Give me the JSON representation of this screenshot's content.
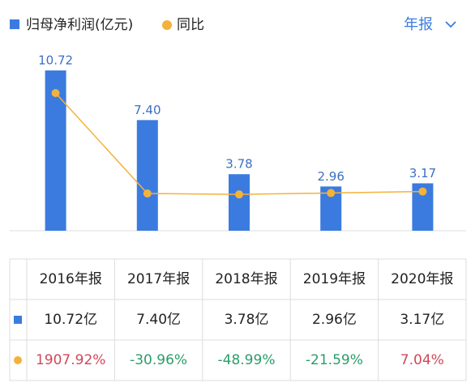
{
  "chart_data": {
    "type": "bar",
    "legend": [
      "归母净利润(亿元)",
      "同比"
    ],
    "period": "年报",
    "categories": [
      "2016年报",
      "2017年报",
      "2018年报",
      "2019年报",
      "2020年报"
    ],
    "series": [
      {
        "name": "归母净利润(亿元)",
        "type": "bar",
        "color": "#3b7be0",
        "values": [
          10.72,
          7.4,
          3.78,
          2.96,
          3.17
        ],
        "value_labels": [
          "10.72",
          "7.40",
          "3.78",
          "2.96",
          "3.17"
        ]
      },
      {
        "name": "同比",
        "type": "line",
        "axis": "y2",
        "color": "#f3b23c",
        "values": [
          1907.92,
          -30.96,
          -48.99,
          -21.59,
          7.04
        ]
      }
    ],
    "ylim": [
      0,
      12.4
    ],
    "y2lim": [
      -750,
      2830
    ],
    "positive_color": "#d0485a",
    "negative_color": "#2a9d6a"
  },
  "table": {
    "rows": [
      [
        "10.72亿",
        "7.40亿",
        "3.78亿",
        "2.96亿",
        "3.17亿"
      ],
      [
        "1907.92%",
        "-30.96%",
        "-48.99%",
        "-21.59%",
        "7.04%"
      ]
    ]
  }
}
